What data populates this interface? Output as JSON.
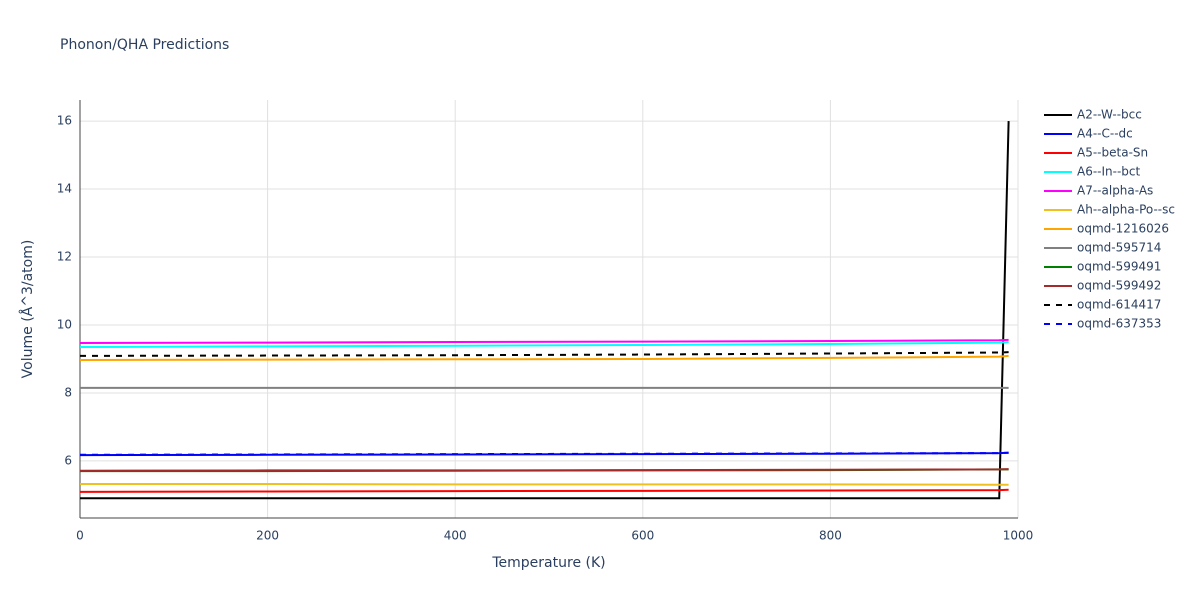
{
  "chart_data": {
    "type": "line",
    "title": "Phonon/QHA Predictions",
    "x_label": "Temperature (K)",
    "y_label": "Volume (Å^3/atom)",
    "x": [
      0,
      200,
      400,
      600,
      800,
      980,
      990
    ],
    "xlim": [
      0,
      1000
    ],
    "xticks": [
      0,
      200,
      400,
      600,
      800,
      1000
    ],
    "ylim": [
      4.32,
      16.62
    ],
    "yticks": [
      6,
      8,
      10,
      12,
      14,
      16
    ],
    "grid": true,
    "legend": "right",
    "series": [
      {
        "name": "A2--W--bcc",
        "color": "#000000",
        "dash": false,
        "values": [
          4.9,
          4.9,
          4.9,
          4.9,
          4.9,
          4.9,
          16.0
        ]
      },
      {
        "name": "A4--C--dc",
        "color": "#0000ff",
        "dash": false,
        "values": [
          6.17,
          6.18,
          6.19,
          6.2,
          6.21,
          6.23,
          6.24
        ]
      },
      {
        "name": "A5--beta-Sn",
        "color": "#ff0000",
        "dash": false,
        "values": [
          5.09,
          5.1,
          5.11,
          5.12,
          5.13,
          5.14,
          5.15
        ]
      },
      {
        "name": "A6--In--bct",
        "color": "#00ffff",
        "dash": false,
        "values": [
          9.35,
          9.37,
          9.39,
          9.41,
          9.44,
          9.48,
          9.5
        ]
      },
      {
        "name": "A7--alpha-As",
        "color": "#ff00ff",
        "dash": false,
        "values": [
          9.47,
          9.48,
          9.5,
          9.51,
          9.53,
          9.55,
          9.56
        ]
      },
      {
        "name": "Ah--alpha-Po--sc",
        "color": "#f0c020",
        "dash": false,
        "values": [
          5.32,
          5.32,
          5.31,
          5.31,
          5.31,
          5.3,
          5.3
        ]
      },
      {
        "name": "oqmd-1216026",
        "color": "#ffa500",
        "dash": false,
        "values": [
          8.97,
          8.98,
          8.99,
          9.0,
          9.03,
          9.07,
          9.09
        ]
      },
      {
        "name": "oqmd-595714",
        "color": "#808080",
        "dash": false,
        "values": [
          8.15,
          8.15,
          8.15,
          8.15,
          8.15,
          8.15,
          8.15
        ]
      },
      {
        "name": "oqmd-599491",
        "color": "#008000",
        "dash": false,
        "values": [
          5.7,
          5.7,
          5.71,
          5.72,
          5.73,
          5.75,
          5.75
        ]
      },
      {
        "name": "oqmd-599492",
        "color": "#a52a2a",
        "dash": false,
        "values": [
          5.71,
          5.72,
          5.72,
          5.73,
          5.74,
          5.75,
          5.76
        ]
      },
      {
        "name": "oqmd-614417",
        "color": "#000000",
        "dash": true,
        "values": [
          9.09,
          9.1,
          9.11,
          9.13,
          9.16,
          9.19,
          9.2
        ]
      },
      {
        "name": "oqmd-637353",
        "color": "#0000ff",
        "dash": true,
        "values": [
          6.18,
          6.19,
          6.2,
          6.21,
          6.22,
          6.23,
          6.24
        ]
      }
    ]
  }
}
